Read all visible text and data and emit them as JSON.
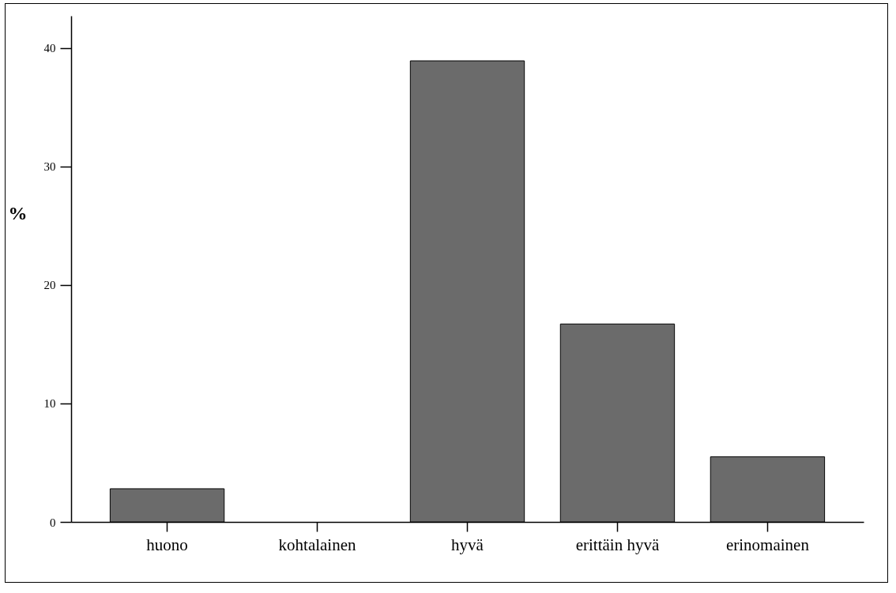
{
  "chart_data": {
    "type": "bar",
    "ylabel": "%",
    "categories": [
      "huono",
      "kohtalainen",
      "hyvä",
      "erittäin hyvä",
      "erinomainen"
    ],
    "values": [
      2.8,
      0,
      38.9,
      16.7,
      5.5
    ],
    "color": "#6b6b6b",
    "ylim": [
      0,
      42.7
    ],
    "yticks": [
      0,
      10,
      20,
      30,
      40
    ]
  }
}
